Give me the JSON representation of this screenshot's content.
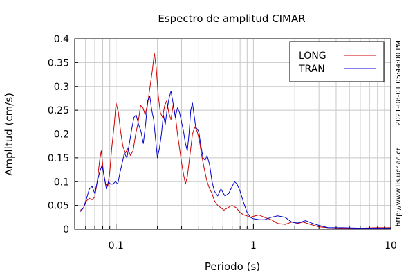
{
  "chart_data": {
    "type": "line",
    "title": "Espectro de amplitud CIMAR",
    "xlabel": "Periodo (s)",
    "ylabel": "Amplitud (cm/s)",
    "xscale": "log",
    "xlim": [
      0.05,
      10
    ],
    "ylim": [
      0,
      0.4
    ],
    "grid": true,
    "legend_position": "top-right",
    "x_ticks": [
      {
        "value": 0.1,
        "label": "0.1"
      },
      {
        "value": 1,
        "label": "1"
      },
      {
        "value": 10,
        "label": "10"
      }
    ],
    "y_ticks": [
      {
        "value": 0,
        "label": "0"
      },
      {
        "value": 0.05,
        "label": "0.05"
      },
      {
        "value": 0.1,
        "label": "0.1"
      },
      {
        "value": 0.15,
        "label": "0.15"
      },
      {
        "value": 0.2,
        "label": "0.2"
      },
      {
        "value": 0.25,
        "label": "0.25"
      },
      {
        "value": 0.3,
        "label": "0.3"
      },
      {
        "value": 0.35,
        "label": "0.35"
      },
      {
        "value": 0.4,
        "label": "0.4"
      }
    ],
    "series": [
      {
        "name": "LONG",
        "color": "#cc0000",
        "points": [
          [
            0.055,
            0.04
          ],
          [
            0.058,
            0.045
          ],
          [
            0.061,
            0.06
          ],
          [
            0.064,
            0.065
          ],
          [
            0.067,
            0.062
          ],
          [
            0.07,
            0.068
          ],
          [
            0.073,
            0.1
          ],
          [
            0.076,
            0.145
          ],
          [
            0.078,
            0.165
          ],
          [
            0.081,
            0.12
          ],
          [
            0.084,
            0.095
          ],
          [
            0.087,
            0.09
          ],
          [
            0.09,
            0.12
          ],
          [
            0.093,
            0.17
          ],
          [
            0.097,
            0.22
          ],
          [
            0.1,
            0.265
          ],
          [
            0.104,
            0.245
          ],
          [
            0.108,
            0.205
          ],
          [
            0.112,
            0.175
          ],
          [
            0.117,
            0.16
          ],
          [
            0.122,
            0.17
          ],
          [
            0.127,
            0.155
          ],
          [
            0.133,
            0.165
          ],
          [
            0.139,
            0.2
          ],
          [
            0.145,
            0.225
          ],
          [
            0.151,
            0.26
          ],
          [
            0.157,
            0.255
          ],
          [
            0.163,
            0.24
          ],
          [
            0.17,
            0.265
          ],
          [
            0.177,
            0.3
          ],
          [
            0.184,
            0.335
          ],
          [
            0.19,
            0.37
          ],
          [
            0.196,
            0.34
          ],
          [
            0.203,
            0.28
          ],
          [
            0.21,
            0.245
          ],
          [
            0.218,
            0.235
          ],
          [
            0.226,
            0.26
          ],
          [
            0.234,
            0.27
          ],
          [
            0.242,
            0.245
          ],
          [
            0.251,
            0.23
          ],
          [
            0.26,
            0.26
          ],
          [
            0.27,
            0.24
          ],
          [
            0.28,
            0.2
          ],
          [
            0.29,
            0.17
          ],
          [
            0.3,
            0.14
          ],
          [
            0.31,
            0.115
          ],
          [
            0.32,
            0.095
          ],
          [
            0.33,
            0.11
          ],
          [
            0.34,
            0.14
          ],
          [
            0.35,
            0.17
          ],
          [
            0.36,
            0.2
          ],
          [
            0.375,
            0.215
          ],
          [
            0.39,
            0.205
          ],
          [
            0.405,
            0.185
          ],
          [
            0.42,
            0.155
          ],
          [
            0.44,
            0.125
          ],
          [
            0.46,
            0.1
          ],
          [
            0.48,
            0.085
          ],
          [
            0.5,
            0.075
          ],
          [
            0.52,
            0.06
          ],
          [
            0.55,
            0.05
          ],
          [
            0.58,
            0.045
          ],
          [
            0.61,
            0.04
          ],
          [
            0.65,
            0.045
          ],
          [
            0.7,
            0.05
          ],
          [
            0.75,
            0.045
          ],
          [
            0.8,
            0.035
          ],
          [
            0.85,
            0.03
          ],
          [
            0.9,
            0.028
          ],
          [
            0.95,
            0.025
          ],
          [
            1.0,
            0.027
          ],
          [
            1.1,
            0.03
          ],
          [
            1.2,
            0.025
          ],
          [
            1.35,
            0.02
          ],
          [
            1.5,
            0.012
          ],
          [
            1.7,
            0.01
          ],
          [
            1.9,
            0.015
          ],
          [
            2.1,
            0.012
          ],
          [
            2.3,
            0.015
          ],
          [
            2.6,
            0.01
          ],
          [
            3.0,
            0.005
          ],
          [
            3.5,
            0.003
          ],
          [
            4.5,
            0.002
          ],
          [
            6.0,
            0.002
          ],
          [
            8.0,
            0.003
          ],
          [
            10.0,
            0.003
          ]
        ]
      },
      {
        "name": "TRAN",
        "color": "#0000cc",
        "points": [
          [
            0.055,
            0.037
          ],
          [
            0.058,
            0.045
          ],
          [
            0.061,
            0.065
          ],
          [
            0.064,
            0.085
          ],
          [
            0.067,
            0.09
          ],
          [
            0.07,
            0.075
          ],
          [
            0.073,
            0.1
          ],
          [
            0.076,
            0.12
          ],
          [
            0.079,
            0.135
          ],
          [
            0.082,
            0.11
          ],
          [
            0.085,
            0.085
          ],
          [
            0.088,
            0.1
          ],
          [
            0.091,
            0.095
          ],
          [
            0.095,
            0.095
          ],
          [
            0.099,
            0.1
          ],
          [
            0.103,
            0.095
          ],
          [
            0.107,
            0.12
          ],
          [
            0.111,
            0.14
          ],
          [
            0.115,
            0.16
          ],
          [
            0.12,
            0.15
          ],
          [
            0.125,
            0.18
          ],
          [
            0.13,
            0.21
          ],
          [
            0.135,
            0.235
          ],
          [
            0.14,
            0.24
          ],
          [
            0.146,
            0.22
          ],
          [
            0.152,
            0.205
          ],
          [
            0.158,
            0.18
          ],
          [
            0.164,
            0.22
          ],
          [
            0.17,
            0.27
          ],
          [
            0.176,
            0.28
          ],
          [
            0.182,
            0.25
          ],
          [
            0.188,
            0.23
          ],
          [
            0.194,
            0.19
          ],
          [
            0.2,
            0.15
          ],
          [
            0.207,
            0.17
          ],
          [
            0.214,
            0.2
          ],
          [
            0.221,
            0.24
          ],
          [
            0.228,
            0.22
          ],
          [
            0.235,
            0.25
          ],
          [
            0.243,
            0.275
          ],
          [
            0.251,
            0.29
          ],
          [
            0.26,
            0.265
          ],
          [
            0.27,
            0.235
          ],
          [
            0.28,
            0.255
          ],
          [
            0.29,
            0.245
          ],
          [
            0.3,
            0.225
          ],
          [
            0.31,
            0.205
          ],
          [
            0.32,
            0.18
          ],
          [
            0.33,
            0.165
          ],
          [
            0.34,
            0.2
          ],
          [
            0.35,
            0.25
          ],
          [
            0.36,
            0.265
          ],
          [
            0.37,
            0.24
          ],
          [
            0.38,
            0.215
          ],
          [
            0.39,
            0.21
          ],
          [
            0.4,
            0.205
          ],
          [
            0.415,
            0.175
          ],
          [
            0.43,
            0.15
          ],
          [
            0.445,
            0.145
          ],
          [
            0.46,
            0.155
          ],
          [
            0.48,
            0.135
          ],
          [
            0.5,
            0.1
          ],
          [
            0.52,
            0.08
          ],
          [
            0.55,
            0.07
          ],
          [
            0.58,
            0.085
          ],
          [
            0.62,
            0.07
          ],
          [
            0.66,
            0.075
          ],
          [
            0.7,
            0.09
          ],
          [
            0.73,
            0.1
          ],
          [
            0.76,
            0.095
          ],
          [
            0.8,
            0.08
          ],
          [
            0.85,
            0.055
          ],
          [
            0.9,
            0.035
          ],
          [
            0.95,
            0.025
          ],
          [
            1.0,
            0.022
          ],
          [
            1.1,
            0.02
          ],
          [
            1.2,
            0.02
          ],
          [
            1.35,
            0.025
          ],
          [
            1.5,
            0.028
          ],
          [
            1.7,
            0.025
          ],
          [
            1.9,
            0.015
          ],
          [
            2.1,
            0.013
          ],
          [
            2.4,
            0.018
          ],
          [
            2.7,
            0.012
          ],
          [
            3.0,
            0.008
          ],
          [
            3.5,
            0.003
          ],
          [
            4.5,
            0.003
          ],
          [
            6.0,
            0.002
          ],
          [
            8.0,
            0.002
          ],
          [
            10.0,
            0.002
          ]
        ]
      }
    ],
    "side_annotations": {
      "timestamp": "2021-08-01 05:44:00 PM",
      "website": "http://www.lis.ucr.ac.cr"
    }
  }
}
